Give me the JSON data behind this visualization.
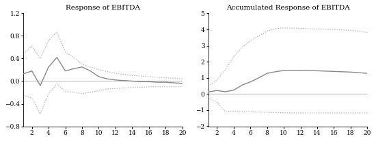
{
  "left_title": "Response of EBITDA",
  "right_title": "Accumulated Response of EBITDA",
  "x": [
    1,
    2,
    3,
    4,
    5,
    6,
    7,
    8,
    9,
    10,
    11,
    12,
    13,
    14,
    15,
    16,
    17,
    18,
    19,
    20
  ],
  "left_center": [
    0.13,
    0.18,
    -0.08,
    0.25,
    0.42,
    0.18,
    0.22,
    0.25,
    0.18,
    0.08,
    0.04,
    0.02,
    0.01,
    0.0,
    -0.01,
    -0.01,
    -0.02,
    -0.02,
    -0.03,
    -0.04
  ],
  "left_upper": [
    0.48,
    0.62,
    0.4,
    0.72,
    0.87,
    0.52,
    0.42,
    0.3,
    0.25,
    0.2,
    0.17,
    0.14,
    0.12,
    0.1,
    0.09,
    0.08,
    0.07,
    0.06,
    0.05,
    0.04
  ],
  "left_lower": [
    -0.25,
    -0.3,
    -0.58,
    -0.22,
    -0.05,
    -0.18,
    -0.2,
    -0.22,
    -0.2,
    -0.17,
    -0.14,
    -0.13,
    -0.12,
    -0.11,
    -0.11,
    -0.1,
    -0.1,
    -0.1,
    -0.1,
    -0.1
  ],
  "right_center": [
    0.13,
    0.22,
    0.14,
    0.24,
    0.55,
    0.75,
    1.0,
    1.28,
    1.38,
    1.46,
    1.47,
    1.46,
    1.46,
    1.44,
    1.42,
    1.4,
    1.38,
    1.36,
    1.32,
    1.28
  ],
  "right_upper": [
    0.48,
    0.88,
    1.5,
    2.3,
    2.9,
    3.3,
    3.6,
    3.9,
    4.05,
    4.1,
    4.08,
    4.07,
    4.05,
    4.03,
    4.02,
    4.0,
    3.97,
    3.94,
    3.9,
    3.8
  ],
  "right_lower": [
    -0.25,
    -0.5,
    -1.1,
    -1.05,
    -1.1,
    -1.1,
    -1.12,
    -1.13,
    -1.15,
    -1.16,
    -1.17,
    -1.17,
    -1.17,
    -1.17,
    -1.17,
    -1.17,
    -1.17,
    -1.17,
    -1.17,
    -1.17
  ],
  "left_ylim": [
    -0.8,
    1.2
  ],
  "right_ylim": [
    -2,
    5
  ],
  "left_yticks": [
    -0.8,
    -0.4,
    0.0,
    0.4,
    0.8,
    1.2
  ],
  "right_yticks": [
    -2,
    -1,
    0,
    1,
    2,
    3,
    4,
    5
  ],
  "xticks": [
    2,
    4,
    6,
    8,
    10,
    12,
    14,
    16,
    18,
    20
  ],
  "line_color": "#888888",
  "band_color": "#aaaaaa",
  "zero_color": "#bbbbbb",
  "background": "#ffffff"
}
